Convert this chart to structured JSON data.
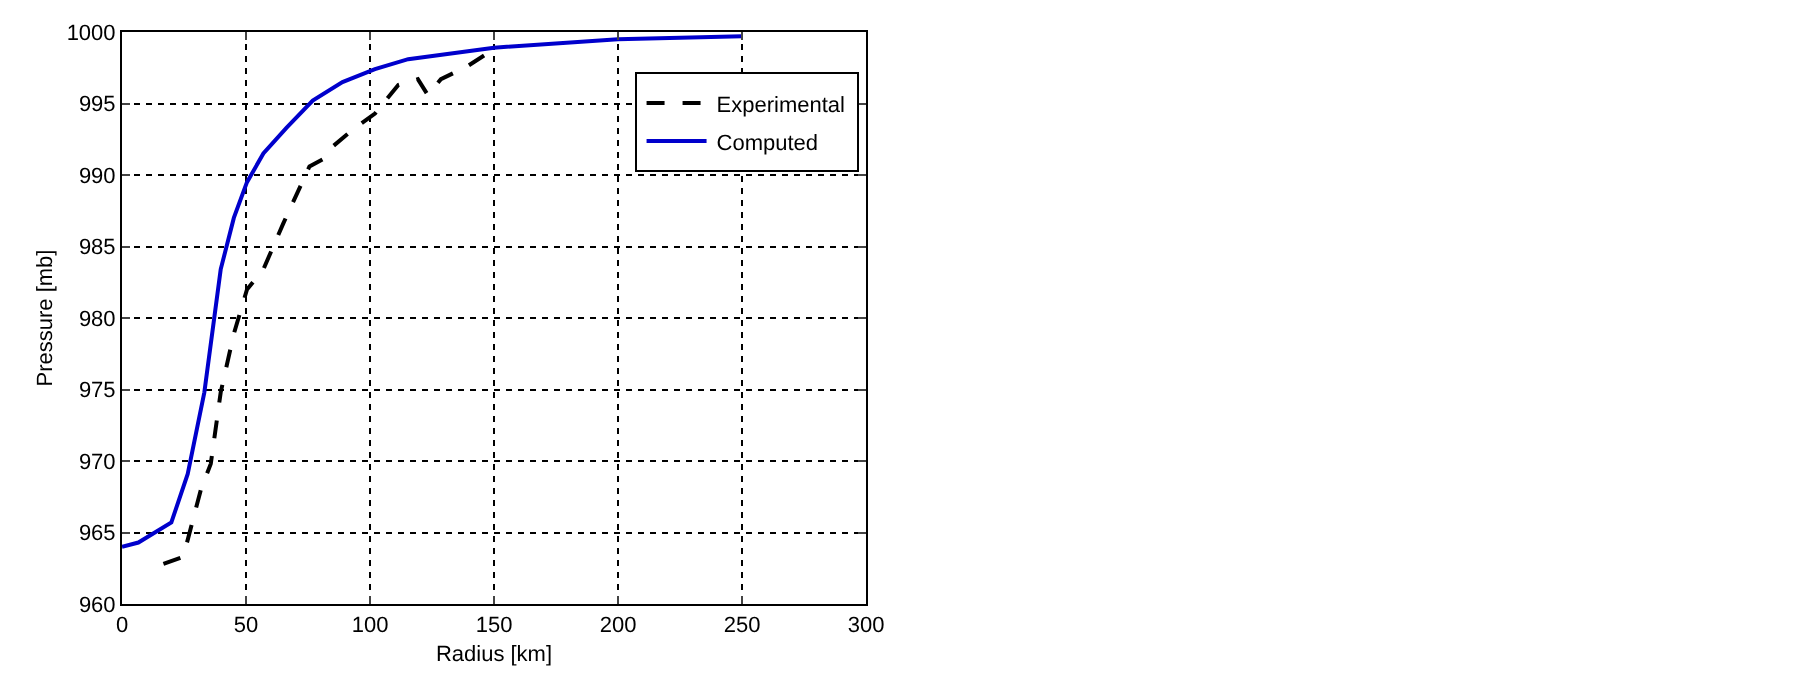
{
  "chart_data": {
    "type": "line",
    "xlabel": "Radius [km]",
    "ylabel": "Pressure [mb]",
    "xlim": [
      0,
      300
    ],
    "xticks": [
      0,
      50,
      100,
      150,
      200,
      250,
      300
    ],
    "ylim": [
      960,
      1000
    ],
    "yticks": [
      960,
      965,
      970,
      975,
      980,
      985,
      990,
      995,
      1000
    ],
    "grid": true,
    "legend": "top right",
    "series": [
      {
        "name": "Experimental",
        "color": "#000000",
        "line_style": "dashed",
        "x": [
          16.7,
          24.7,
          31.8,
          35.8,
          39.8,
          45.1,
          50.4,
          57,
          65,
          75.6,
          81,
          85,
          94,
          102,
          111.4,
          119.3,
          123.3,
          128.6,
          139.2,
          150
        ],
        "values": [
          962.8,
          963.3,
          968.0,
          969.8,
          974.8,
          978.9,
          982.0,
          983.4,
          986.6,
          990.6,
          991.1,
          992.0,
          993.3,
          994.3,
          996.3,
          996.7,
          995.6,
          996.7,
          997.6,
          998.8
        ]
      },
      {
        "name": "Computed",
        "color": "#0000cc",
        "line_style": "solid",
        "x": [
          0,
          6.6,
          19.9,
          26.5,
          33.2,
          39.8,
          45.1,
          50.4,
          57,
          66.3,
          76.9,
          88.9,
          102,
          115.4,
          150,
          200,
          250
        ],
        "values": [
          964.0,
          964.3,
          965.7,
          969.1,
          974.8,
          983.4,
          987.0,
          989.5,
          991.5,
          993.3,
          995.2,
          996.5,
          997.4,
          998.1,
          998.9,
          999.5,
          999.7
        ]
      }
    ]
  }
}
